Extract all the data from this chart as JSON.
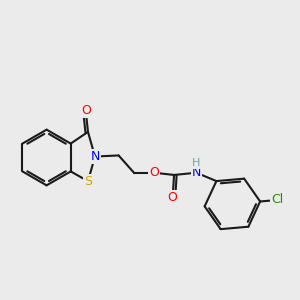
{
  "bg_color": "#ebebeb",
  "bond_color": "#1a1a1a",
  "atom_colors": {
    "O": "#ff0000",
    "N": "#0000ff",
    "S": "#ccaa00",
    "Cl": "#228b00",
    "H": "#5fa8a8"
  },
  "bond_width": 1.5,
  "dbo": 0.05,
  "figsize": [
    3.0,
    3.0
  ],
  "dpi": 100
}
